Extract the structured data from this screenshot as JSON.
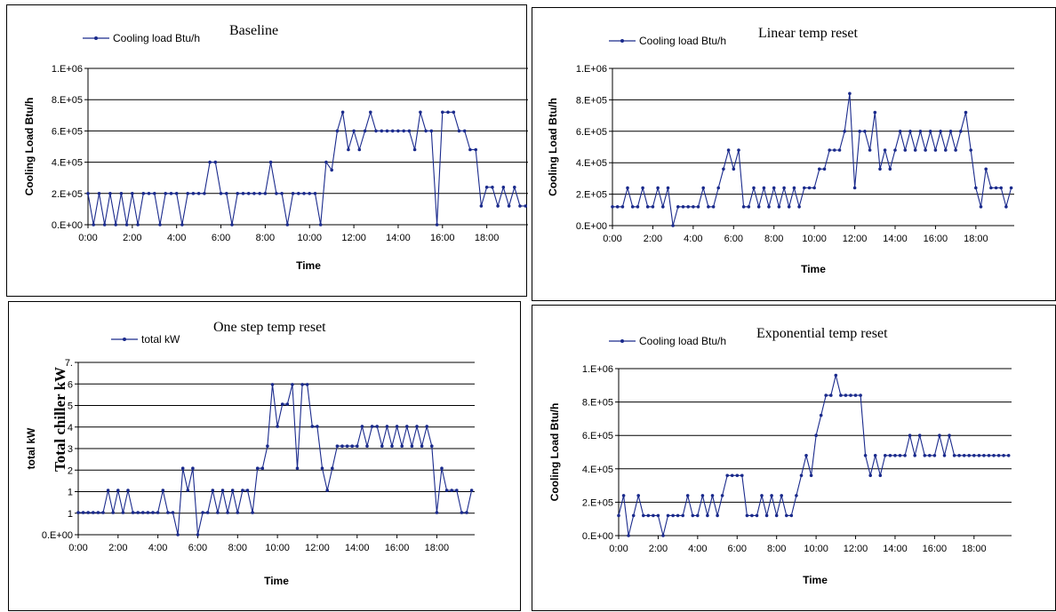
{
  "chart_data": [
    {
      "type": "line",
      "title": "Baseline",
      "legend": "Cooling load Btu/h",
      "ylabel": "Cooling Load Btu/h",
      "xlabel": "Time",
      "ylim": [
        0,
        1000000
      ],
      "yticks": [
        "0.E+00",
        "2.E+05",
        "4.E+05",
        "6.E+05",
        "8.E+05",
        "1.E+06"
      ],
      "xticks": [
        "0:00",
        "2:00",
        "4:00",
        "6:00",
        "8:00",
        "10:00",
        "12:00",
        "14:00",
        "16:00",
        "18:00"
      ],
      "xlim_hours": [
        0,
        19.9
      ],
      "color": "#1a2a8c",
      "x": [
        0,
        0.25,
        0.5,
        0.75,
        1,
        1.25,
        1.5,
        1.75,
        2,
        2.25,
        2.5,
        2.75,
        3,
        3.25,
        3.5,
        3.75,
        4,
        4.25,
        4.5,
        4.75,
        5,
        5.25,
        5.5,
        5.75,
        6,
        6.25,
        6.5,
        6.75,
        7,
        7.25,
        7.5,
        7.75,
        8,
        8.25,
        8.5,
        8.75,
        9,
        9.25,
        9.5,
        9.75,
        10,
        10.25,
        10.5,
        10.75,
        11,
        11.25,
        11.5,
        11.75,
        12,
        12.25,
        12.5,
        12.75,
        13,
        13.25,
        13.5,
        13.75,
        14,
        14.25,
        14.5,
        14.75,
        15,
        15.25,
        15.5,
        15.75,
        16,
        16.25,
        16.5,
        16.75,
        17,
        17.25,
        17.5,
        17.75,
        18,
        18.25,
        18.5,
        18.75,
        19,
        19.25,
        19.5,
        19.75
      ],
      "y": [
        200000,
        0,
        200000,
        0,
        200000,
        0,
        200000,
        0,
        200000,
        0,
        200000,
        200000,
        200000,
        0,
        200000,
        200000,
        200000,
        0,
        200000,
        200000,
        200000,
        200000,
        400000,
        400000,
        200000,
        200000,
        0,
        200000,
        200000,
        200000,
        200000,
        200000,
        200000,
        400000,
        200000,
        200000,
        0,
        200000,
        200000,
        200000,
        200000,
        200000,
        0,
        400000,
        350000,
        600000,
        720000,
        480000,
        600000,
        480000,
        600000,
        720000,
        600000,
        600000,
        600000,
        600000,
        600000,
        600000,
        600000,
        480000,
        720000,
        600000,
        600000,
        0,
        720000,
        720000,
        720000,
        600000,
        600000,
        480000,
        480000,
        120000,
        240000,
        240000,
        120000,
        240000,
        120000,
        240000,
        120000,
        120000
      ]
    },
    {
      "type": "line",
      "title": "Linear temp reset",
      "legend": "Cooling load Btu/h",
      "ylabel": "Cooling Load Btu/h",
      "xlabel": "Time",
      "ylim": [
        0,
        1000000
      ],
      "yticks": [
        "0.E+00",
        "2.E+05",
        "4.E+05",
        "6.E+05",
        "8.E+05",
        "1.E+06"
      ],
      "xticks": [
        "0:00",
        "2:00",
        "4:00",
        "6:00",
        "8:00",
        "10:00",
        "12:00",
        "14:00",
        "16:00",
        "18:00"
      ],
      "xlim_hours": [
        0,
        19.9
      ],
      "color": "#1a2a8c",
      "x": [
        0,
        0.25,
        0.5,
        0.75,
        1,
        1.25,
        1.5,
        1.75,
        2,
        2.25,
        2.5,
        2.75,
        3,
        3.25,
        3.5,
        3.75,
        4,
        4.25,
        4.5,
        4.75,
        5,
        5.25,
        5.5,
        5.75,
        6,
        6.25,
        6.5,
        6.75,
        7,
        7.25,
        7.5,
        7.75,
        8,
        8.25,
        8.5,
        8.75,
        9,
        9.25,
        9.5,
        9.75,
        10,
        10.25,
        10.5,
        10.75,
        11,
        11.25,
        11.5,
        11.75,
        12,
        12.25,
        12.5,
        12.75,
        13,
        13.25,
        13.5,
        13.75,
        14,
        14.25,
        14.5,
        14.75,
        15,
        15.25,
        15.5,
        15.75,
        16,
        16.25,
        16.5,
        16.75,
        17,
        17.25,
        17.5,
        17.75,
        18,
        18.25,
        18.5,
        18.75,
        19,
        19.25,
        19.5,
        19.75
      ],
      "y": [
        120000,
        120000,
        120000,
        240000,
        120000,
        120000,
        240000,
        120000,
        120000,
        240000,
        120000,
        240000,
        0,
        120000,
        120000,
        120000,
        120000,
        120000,
        240000,
        120000,
        120000,
        240000,
        360000,
        480000,
        360000,
        480000,
        120000,
        120000,
        240000,
        120000,
        240000,
        120000,
        240000,
        120000,
        240000,
        120000,
        240000,
        120000,
        240000,
        240000,
        240000,
        360000,
        360000,
        480000,
        480000,
        480000,
        600000,
        840000,
        240000,
        600000,
        600000,
        480000,
        720000,
        360000,
        480000,
        360000,
        480000,
        600000,
        480000,
        600000,
        480000,
        600000,
        480000,
        600000,
        480000,
        600000,
        480000,
        600000,
        480000,
        600000,
        720000,
        480000,
        240000,
        120000,
        360000,
        240000,
        240000,
        240000,
        120000,
        240000
      ]
    },
    {
      "type": "line",
      "title": "One step temp reset",
      "legend": "total kW",
      "ylabel": "total kW",
      "overlay_label": "Total chiller kW",
      "xlabel": "Time",
      "ylim": [
        0,
        7
      ],
      "yticks": [
        "0.E+00",
        "1",
        "1",
        "2",
        "3",
        "4",
        "5",
        "6",
        "7."
      ],
      "xticks": [
        "0:00",
        "2:00",
        "4:00",
        "6:00",
        "8:00",
        "10:00",
        "12:00",
        "14:00",
        "16:00",
        "18:00"
      ],
      "xlim_hours": [
        0,
        19.9
      ],
      "color": "#1a2a8c",
      "x": [
        0,
        0.25,
        0.5,
        0.75,
        1,
        1.25,
        1.5,
        1.75,
        2,
        2.25,
        2.5,
        2.75,
        3,
        3.25,
        3.5,
        3.75,
        4,
        4.25,
        4.5,
        4.75,
        5,
        5.25,
        5.5,
        5.75,
        6,
        6.25,
        6.5,
        6.75,
        7,
        7.25,
        7.5,
        7.75,
        8,
        8.25,
        8.5,
        8.75,
        9,
        9.25,
        9.5,
        9.75,
        10,
        10.25,
        10.5,
        10.75,
        11,
        11.25,
        11.5,
        11.75,
        12,
        12.25,
        12.5,
        12.75,
        13,
        13.25,
        13.5,
        13.75,
        14,
        14.25,
        14.5,
        14.75,
        15,
        15.25,
        15.5,
        15.75,
        16,
        16.25,
        16.5,
        16.75,
        17,
        17.25,
        17.5,
        17.75,
        18,
        18.25,
        18.5,
        18.75,
        19,
        19.25,
        19.5,
        19.75
      ],
      "y": [
        0.9,
        0.9,
        0.9,
        0.9,
        0.9,
        0.9,
        1.8,
        0.9,
        1.8,
        0.9,
        1.8,
        0.9,
        0.9,
        0.9,
        0.9,
        0.9,
        0.9,
        1.8,
        0.9,
        0.9,
        0,
        2.7,
        1.8,
        2.7,
        0,
        0.9,
        0.9,
        1.8,
        0.9,
        1.8,
        0.9,
        1.8,
        0.9,
        1.8,
        1.8,
        0.9,
        2.7,
        2.7,
        3.6,
        6.1,
        4.4,
        5.3,
        5.3,
        6.1,
        2.7,
        6.1,
        6.1,
        4.4,
        4.4,
        2.7,
        1.8,
        2.7,
        3.6,
        3.6,
        3.6,
        3.6,
        3.6,
        4.4,
        3.6,
        4.4,
        4.4,
        3.6,
        4.4,
        3.6,
        4.4,
        3.6,
        4.4,
        3.6,
        4.4,
        3.6,
        4.4,
        3.6,
        0.9,
        2.7,
        1.8,
        1.8,
        1.8,
        0.9,
        0.9,
        1.8
      ]
    },
    {
      "type": "line",
      "title": "Exponential temp reset",
      "legend": "Cooling load Btu/h",
      "ylabel": "Cooling Load Btu/h",
      "xlabel": "Time",
      "ylim": [
        0,
        1000000
      ],
      "yticks": [
        "0.E+00",
        "2.E+05",
        "4.E+05",
        "6.E+05",
        "8.E+05",
        "1.E+06"
      ],
      "xticks": [
        "0:00",
        "2:00",
        "4:00",
        "6:00",
        "8:00",
        "10:00",
        "12:00",
        "14:00",
        "16:00",
        "18:00"
      ],
      "xlim_hours": [
        0,
        19.9
      ],
      "color": "#1a2a8c",
      "x": [
        0,
        0.25,
        0.5,
        0.75,
        1,
        1.25,
        1.5,
        1.75,
        2,
        2.25,
        2.5,
        2.75,
        3,
        3.25,
        3.5,
        3.75,
        4,
        4.25,
        4.5,
        4.75,
        5,
        5.25,
        5.5,
        5.75,
        6,
        6.25,
        6.5,
        6.75,
        7,
        7.25,
        7.5,
        7.75,
        8,
        8.25,
        8.5,
        8.75,
        9,
        9.25,
        9.5,
        9.75,
        10,
        10.25,
        10.5,
        10.75,
        11,
        11.25,
        11.5,
        11.75,
        12,
        12.25,
        12.5,
        12.75,
        13,
        13.25,
        13.5,
        13.75,
        14,
        14.25,
        14.5,
        14.75,
        15,
        15.25,
        15.5,
        15.75,
        16,
        16.25,
        16.5,
        16.75,
        17,
        17.25,
        17.5,
        17.75,
        18,
        18.25,
        18.5,
        18.75,
        19,
        19.25,
        19.5,
        19.75
      ],
      "y": [
        120000,
        240000,
        0,
        120000,
        240000,
        120000,
        120000,
        120000,
        120000,
        0,
        120000,
        120000,
        120000,
        120000,
        240000,
        120000,
        120000,
        240000,
        120000,
        240000,
        120000,
        240000,
        360000,
        360000,
        360000,
        360000,
        120000,
        120000,
        120000,
        240000,
        120000,
        240000,
        120000,
        240000,
        120000,
        120000,
        240000,
        360000,
        480000,
        360000,
        600000,
        720000,
        840000,
        840000,
        960000,
        840000,
        840000,
        840000,
        840000,
        840000,
        480000,
        360000,
        480000,
        360000,
        480000,
        480000,
        480000,
        480000,
        480000,
        600000,
        480000,
        600000,
        480000,
        480000,
        480000,
        600000,
        480000,
        600000,
        480000,
        480000,
        480000,
        480000,
        480000,
        480000,
        480000,
        480000,
        480000,
        480000,
        480000,
        480000
      ]
    }
  ]
}
